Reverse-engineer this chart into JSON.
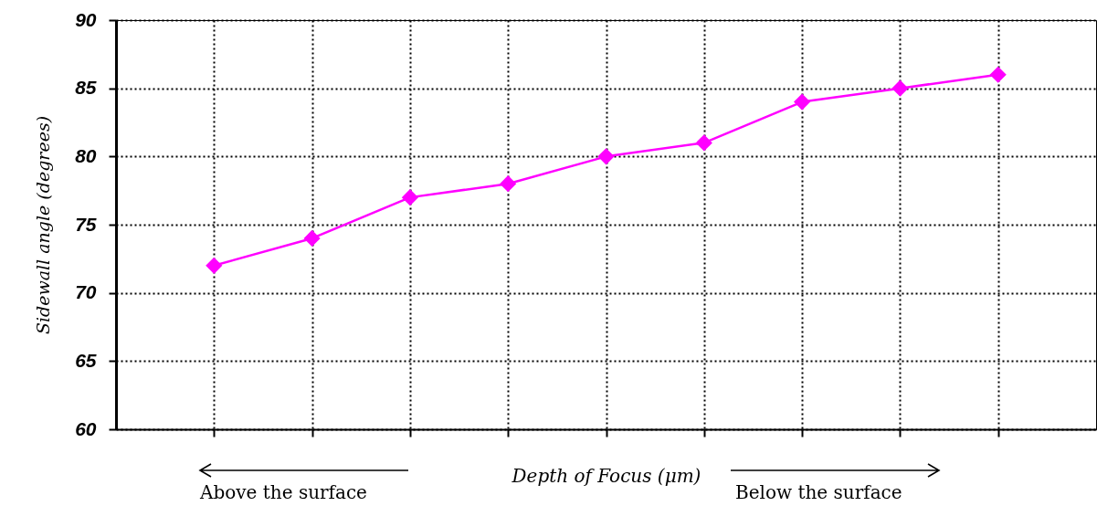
{
  "chart_data": {
    "type": "line",
    "xlabel": "Depth of Focus (μm)",
    "ylabel": "Sidewall angle (degrees)",
    "categories": [
      null,
      null,
      null,
      null,
      null,
      null,
      null,
      null,
      null
    ],
    "series": [
      {
        "color": "#ff00ff",
        "values": [
          72,
          74,
          77,
          78,
          80,
          81,
          84,
          85,
          86
        ]
      }
    ],
    "ylim": [
      60,
      90
    ],
    "yticks": [
      60,
      65,
      70,
      75,
      80,
      85,
      90
    ],
    "grid": true,
    "marker": "diamond",
    "line_style": "solid",
    "tick_labels": "y",
    "annotations": [
      "Above the surface",
      "Below the surface"
    ]
  }
}
